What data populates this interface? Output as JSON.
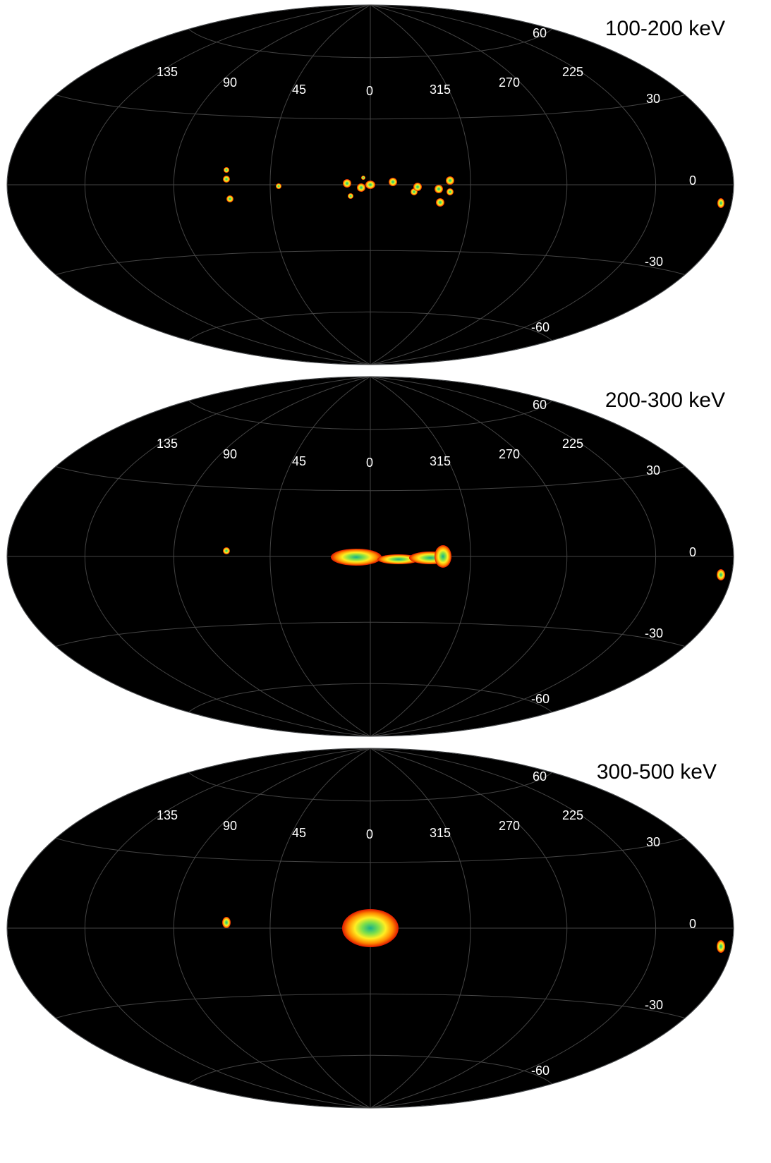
{
  "panels": [
    {
      "title": "100-200 keV",
      "longitude_labels": [
        "135",
        "90",
        "45",
        "0",
        "315",
        "270",
        "225"
      ],
      "latitude_labels": [
        "60",
        "30",
        "0",
        "-30",
        "-60"
      ]
    },
    {
      "title": "200-300 keV",
      "longitude_labels": [
        "135",
        "90",
        "45",
        "0",
        "315",
        "270",
        "225"
      ],
      "latitude_labels": [
        "60",
        "30",
        "0",
        "-30",
        "-60"
      ]
    },
    {
      "title": "300-500 keV",
      "longitude_labels": [
        "135",
        "90",
        "45",
        "0",
        "315",
        "270",
        "225"
      ],
      "latitude_labels": [
        "60",
        "30",
        "0",
        "-30",
        "-60"
      ]
    }
  ]
}
